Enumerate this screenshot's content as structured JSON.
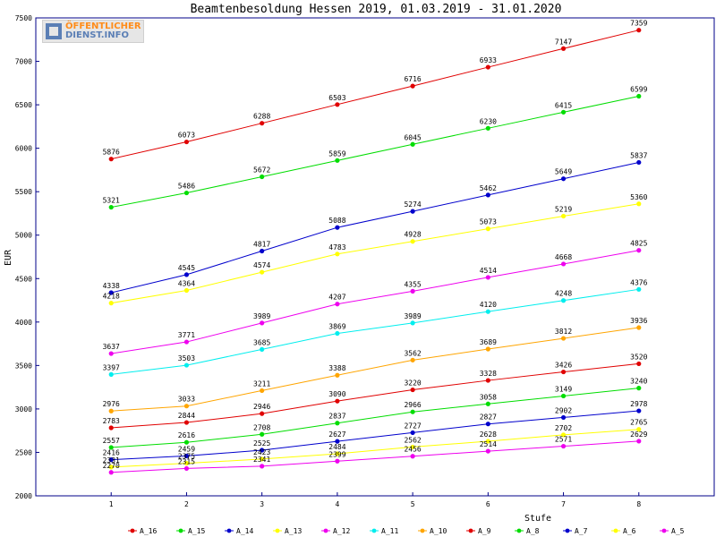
{
  "logo": {
    "line1": "ÖFFENTLICHER",
    "line2": "DIENST.INFO"
  },
  "chart_data": {
    "type": "line",
    "title": "Beamtenbesoldung Hessen 2019, 01.03.2019 - 31.01.2020",
    "xlabel": "Stufe",
    "ylabel": "EUR",
    "x": [
      1,
      2,
      3,
      4,
      5,
      6,
      7,
      8
    ],
    "xlim": [
      0,
      9
    ],
    "ylim": [
      2000,
      7500
    ],
    "yticks": [
      2000,
      2500,
      3000,
      3500,
      4000,
      4500,
      5000,
      5500,
      6000,
      6500,
      7000,
      7500
    ],
    "grid": false,
    "legend_position": "bottom",
    "series": [
      {
        "name": "A_16",
        "color": "#e00000",
        "values": [
          5876,
          6073,
          6288,
          6503,
          6716,
          6933,
          7147,
          7359
        ]
      },
      {
        "name": "A_15",
        "color": "#00dd00",
        "values": [
          5321,
          5486,
          5672,
          5859,
          6045,
          6230,
          6415,
          6599
        ]
      },
      {
        "name": "A_14",
        "color": "#0000cc",
        "values": [
          4338,
          4545,
          4817,
          5088,
          5274,
          5462,
          5649,
          5837
        ]
      },
      {
        "name": "A_13",
        "color": "#ffff00",
        "values": [
          4218,
          4364,
          4574,
          4783,
          4928,
          5073,
          5219,
          5360
        ]
      },
      {
        "name": "A_12",
        "color": "#ee00ee",
        "values": [
          3637,
          3771,
          3989,
          4207,
          4355,
          4514,
          4668,
          4825
        ]
      },
      {
        "name": "A_11",
        "color": "#00eeee",
        "values": [
          3397,
          3503,
          3685,
          3869,
          3989,
          4120,
          4248,
          4376
        ]
      },
      {
        "name": "A_10",
        "color": "#ffa500",
        "values": [
          2976,
          3033,
          3211,
          3388,
          3562,
          3689,
          3812,
          3936
        ]
      },
      {
        "name": "A_9",
        "color": "#e00000",
        "values": [
          2783,
          2844,
          2946,
          3090,
          3220,
          3328,
          3426,
          3520
        ]
      },
      {
        "name": "A_8",
        "color": "#00dd00",
        "values": [
          2557,
          2616,
          2708,
          2837,
          2966,
          3058,
          3149,
          3240
        ]
      },
      {
        "name": "A_7",
        "color": "#0000cc",
        "values": [
          2416,
          2459,
          2525,
          2627,
          2727,
          2827,
          2902,
          2978
        ]
      },
      {
        "name": "A_6",
        "color": "#ffff00",
        "values": [
          2331,
          2375,
          2423,
          2484,
          2562,
          2628,
          2702,
          2765
        ]
      },
      {
        "name": "A_5",
        "color": "#ee00ee",
        "values": [
          2270,
          2315,
          2341,
          2399,
          2456,
          2514,
          2571,
          2629
        ]
      }
    ]
  }
}
